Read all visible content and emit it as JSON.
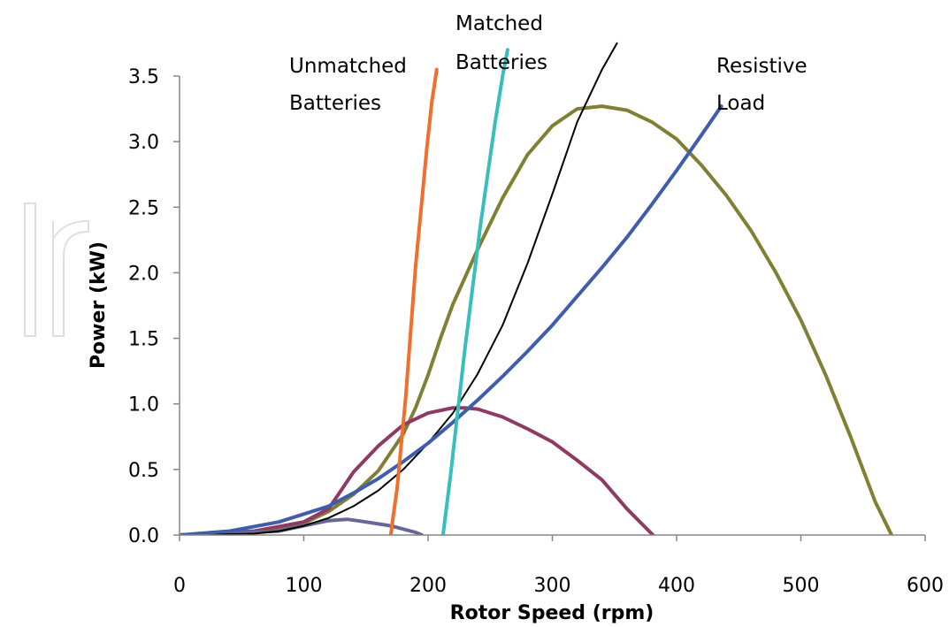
{
  "chart_data": {
    "type": "line",
    "title": "",
    "xlabel": "Rotor Speed (rpm)",
    "ylabel": "Power (kW)",
    "xlim": [
      0,
      600
    ],
    "ylim": [
      0,
      3.5
    ],
    "xticks": [
      "0",
      "100",
      "200",
      "300",
      "400",
      "500",
      "600"
    ],
    "yticks": [
      "0.0",
      "0.5",
      "1.0",
      "1.5",
      "2.0",
      "2.5",
      "3.0",
      "3.5"
    ],
    "grid": false,
    "legend": "none",
    "annotations": [
      {
        "lines": [
          "Unmatched",
          "Batteries"
        ]
      },
      {
        "lines": [
          "Matched",
          "Batteries"
        ]
      },
      {
        "lines": [
          "Resistive",
          "Load"
        ]
      }
    ],
    "series": [
      {
        "color": "#7f8034",
        "width": 4,
        "x": [
          0,
          40,
          80,
          100,
          120,
          140,
          160,
          180,
          190,
          200,
          210,
          220,
          240,
          260,
          280,
          300,
          320,
          340,
          360,
          380,
          400,
          420,
          440,
          460,
          480,
          500,
          520,
          540,
          560,
          573
        ],
        "y": [
          0,
          0.01,
          0.05,
          0.09,
          0.18,
          0.31,
          0.49,
          0.77,
          0.97,
          1.22,
          1.5,
          1.76,
          2.18,
          2.57,
          2.9,
          3.12,
          3.25,
          3.27,
          3.24,
          3.15,
          3.02,
          2.82,
          2.59,
          2.32,
          2.0,
          1.64,
          1.22,
          0.75,
          0.25,
          0
        ]
      },
      {
        "color": "#8e3a63",
        "width": 4,
        "x": [
          0,
          60,
          100,
          120,
          140,
          160,
          180,
          200,
          220,
          230,
          240,
          260,
          280,
          300,
          320,
          340,
          360,
          381
        ],
        "y": [
          0,
          0.03,
          0.1,
          0.2,
          0.48,
          0.68,
          0.84,
          0.93,
          0.97,
          0.97,
          0.96,
          0.9,
          0.81,
          0.71,
          0.57,
          0.42,
          0.2,
          0
        ]
      },
      {
        "color": "#666699",
        "width": 4,
        "x": [
          0,
          80,
          100,
          120,
          135,
          150,
          170,
          190,
          195
        ],
        "y": [
          0,
          0.03,
          0.07,
          0.11,
          0.12,
          0.1,
          0.07,
          0.02,
          0
        ]
      },
      {
        "color": "#000000",
        "width": 2,
        "x": [
          0,
          60,
          80,
          100,
          120,
          140,
          160,
          180,
          200,
          220,
          240,
          260,
          280,
          300,
          320,
          340,
          352
        ],
        "y": [
          0,
          0.01,
          0.03,
          0.07,
          0.13,
          0.22,
          0.34,
          0.5,
          0.7,
          0.93,
          1.23,
          1.6,
          2.07,
          2.6,
          3.15,
          3.55,
          3.75
        ]
      },
      {
        "color": "#3f5dab",
        "width": 4,
        "x": [
          0,
          40,
          80,
          100,
          120,
          140,
          160,
          180,
          200,
          220,
          240,
          260,
          280,
          300,
          320,
          340,
          360,
          380,
          400,
          420,
          436
        ],
        "y": [
          0,
          0.03,
          0.1,
          0.16,
          0.22,
          0.32,
          0.43,
          0.56,
          0.7,
          0.86,
          1.03,
          1.21,
          1.4,
          1.6,
          1.82,
          2.04,
          2.27,
          2.52,
          2.78,
          3.05,
          3.27
        ]
      },
      {
        "color": "#f16e2c",
        "width": 4,
        "x": [
          170,
          172,
          175,
          178,
          182,
          186,
          190,
          195,
          199,
          203,
          207
        ],
        "y": [
          0,
          0.15,
          0.35,
          0.65,
          1.05,
          1.55,
          2.05,
          2.55,
          2.95,
          3.3,
          3.55
        ]
      },
      {
        "color": "#37bfbc",
        "width": 4,
        "x": [
          212,
          218,
          224,
          230,
          236,
          242,
          248,
          254,
          260,
          264
        ],
        "y": [
          0,
          0.45,
          0.95,
          1.45,
          1.9,
          2.35,
          2.75,
          3.15,
          3.5,
          3.7
        ]
      }
    ]
  }
}
